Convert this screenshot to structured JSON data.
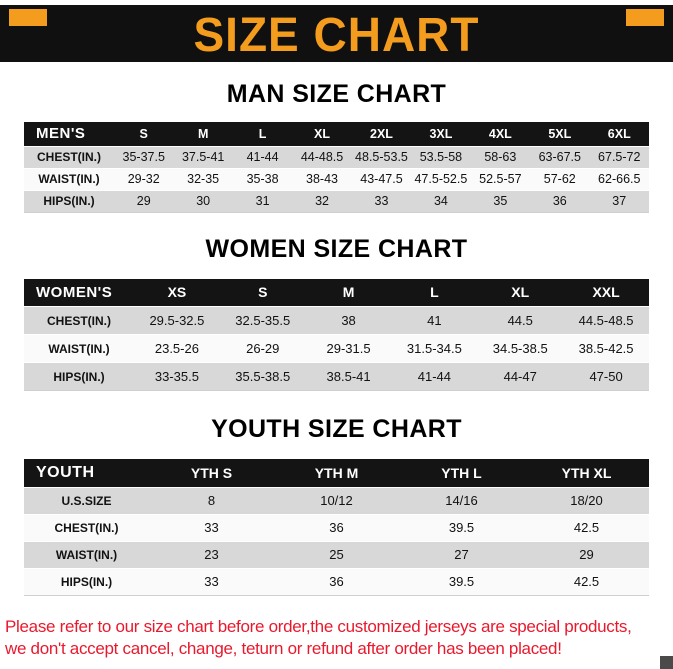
{
  "colors": {
    "accent_orange": "#F39C1E",
    "header_black": "#141414",
    "stripe_gray": "#D8D8D8",
    "notice_red": "#E8192D"
  },
  "banner": {
    "title": "SIZE CHART"
  },
  "sections": [
    {
      "heading": "MAN SIZE CHART",
      "table": {
        "header": [
          "MEN'S",
          "S",
          "M",
          "L",
          "XL",
          "2XL",
          "3XL",
          "4XL",
          "5XL",
          "6XL"
        ],
        "rows": [
          [
            "CHEST(IN.)",
            "35-37.5",
            "37.5-41",
            "41-44",
            "44-48.5",
            "48.5-53.5",
            "53.5-58",
            "58-63",
            "63-67.5",
            "67.5-72"
          ],
          [
            "WAIST(IN.)",
            "29-32",
            "32-35",
            "35-38",
            "38-43",
            "43-47.5",
            "47.5-52.5",
            "52.5-57",
            "57-62",
            "62-66.5"
          ],
          [
            "HIPS(IN.)",
            "29",
            "30",
            "31",
            "32",
            "33",
            "34",
            "35",
            "36",
            "37"
          ]
        ]
      }
    },
    {
      "heading": "WOMEN SIZE CHART",
      "table": {
        "header": [
          "WOMEN'S",
          "XS",
          "S",
          "M",
          "L",
          "XL",
          "XXL"
        ],
        "rows": [
          [
            "CHEST(IN.)",
            "29.5-32.5",
            "32.5-35.5",
            "38",
            "41",
            "44.5",
            "44.5-48.5"
          ],
          [
            "WAIST(IN.)",
            "23.5-26",
            "26-29",
            "29-31.5",
            "31.5-34.5",
            "34.5-38.5",
            "38.5-42.5"
          ],
          [
            "HIPS(IN.)",
            "33-35.5",
            "35.5-38.5",
            "38.5-41",
            "41-44",
            "44-47",
            "47-50"
          ]
        ]
      }
    },
    {
      "heading": "YOUTH SIZE CHART",
      "table": {
        "header": [
          "YOUTH",
          "YTH S",
          "YTH M",
          "YTH L",
          "YTH XL"
        ],
        "rows": [
          [
            "U.S.SIZE",
            "8",
            "10/12",
            "14/16",
            "18/20"
          ],
          [
            "CHEST(IN.)",
            "33",
            "36",
            "39.5",
            "42.5"
          ],
          [
            "WAIST(IN.)",
            "23",
            "25",
            "27",
            "29"
          ],
          [
            "HIPS(IN.)",
            "33",
            "36",
            "39.5",
            "42.5"
          ]
        ]
      }
    }
  ],
  "footer": {
    "line1": "Please refer to our size chart before order,the customized jerseys are special products,",
    "line2": "we don't accept cancel, change, teturn or refund after order has been placed!"
  }
}
